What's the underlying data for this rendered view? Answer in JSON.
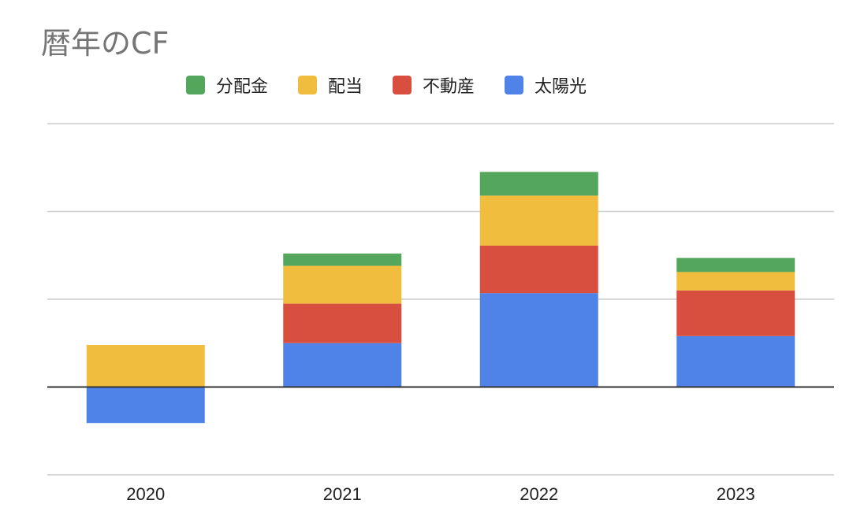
{
  "chart_data": {
    "type": "bar",
    "stacked": true,
    "title": "暦年のCF",
    "xlabel": "",
    "ylabel": "",
    "categories": [
      "2020",
      "2021",
      "2022",
      "2023"
    ],
    "series": [
      {
        "name": "太陽光",
        "color": "#4f83e8",
        "values": [
          -0.41,
          0.5,
          1.07,
          0.58
        ]
      },
      {
        "name": "不動産",
        "color": "#d94f3f",
        "values": [
          0,
          0.45,
          0.54,
          0.52
        ]
      },
      {
        "name": "配当",
        "color": "#f0bd3f",
        "values": [
          0.48,
          0.43,
          0.57,
          0.21
        ]
      },
      {
        "name": "分配金",
        "color": "#54a65d",
        "values": [
          0,
          0.14,
          0.27,
          0.16
        ]
      }
    ],
    "legend_order": [
      "分配金",
      "配当",
      "不動産",
      "太陽光"
    ],
    "ylim": [
      -1,
      3
    ],
    "y_gridlines": [
      -1,
      0,
      1,
      2,
      3
    ],
    "y_tick_labels_visible": false,
    "grid": true,
    "legend_position": "top"
  }
}
